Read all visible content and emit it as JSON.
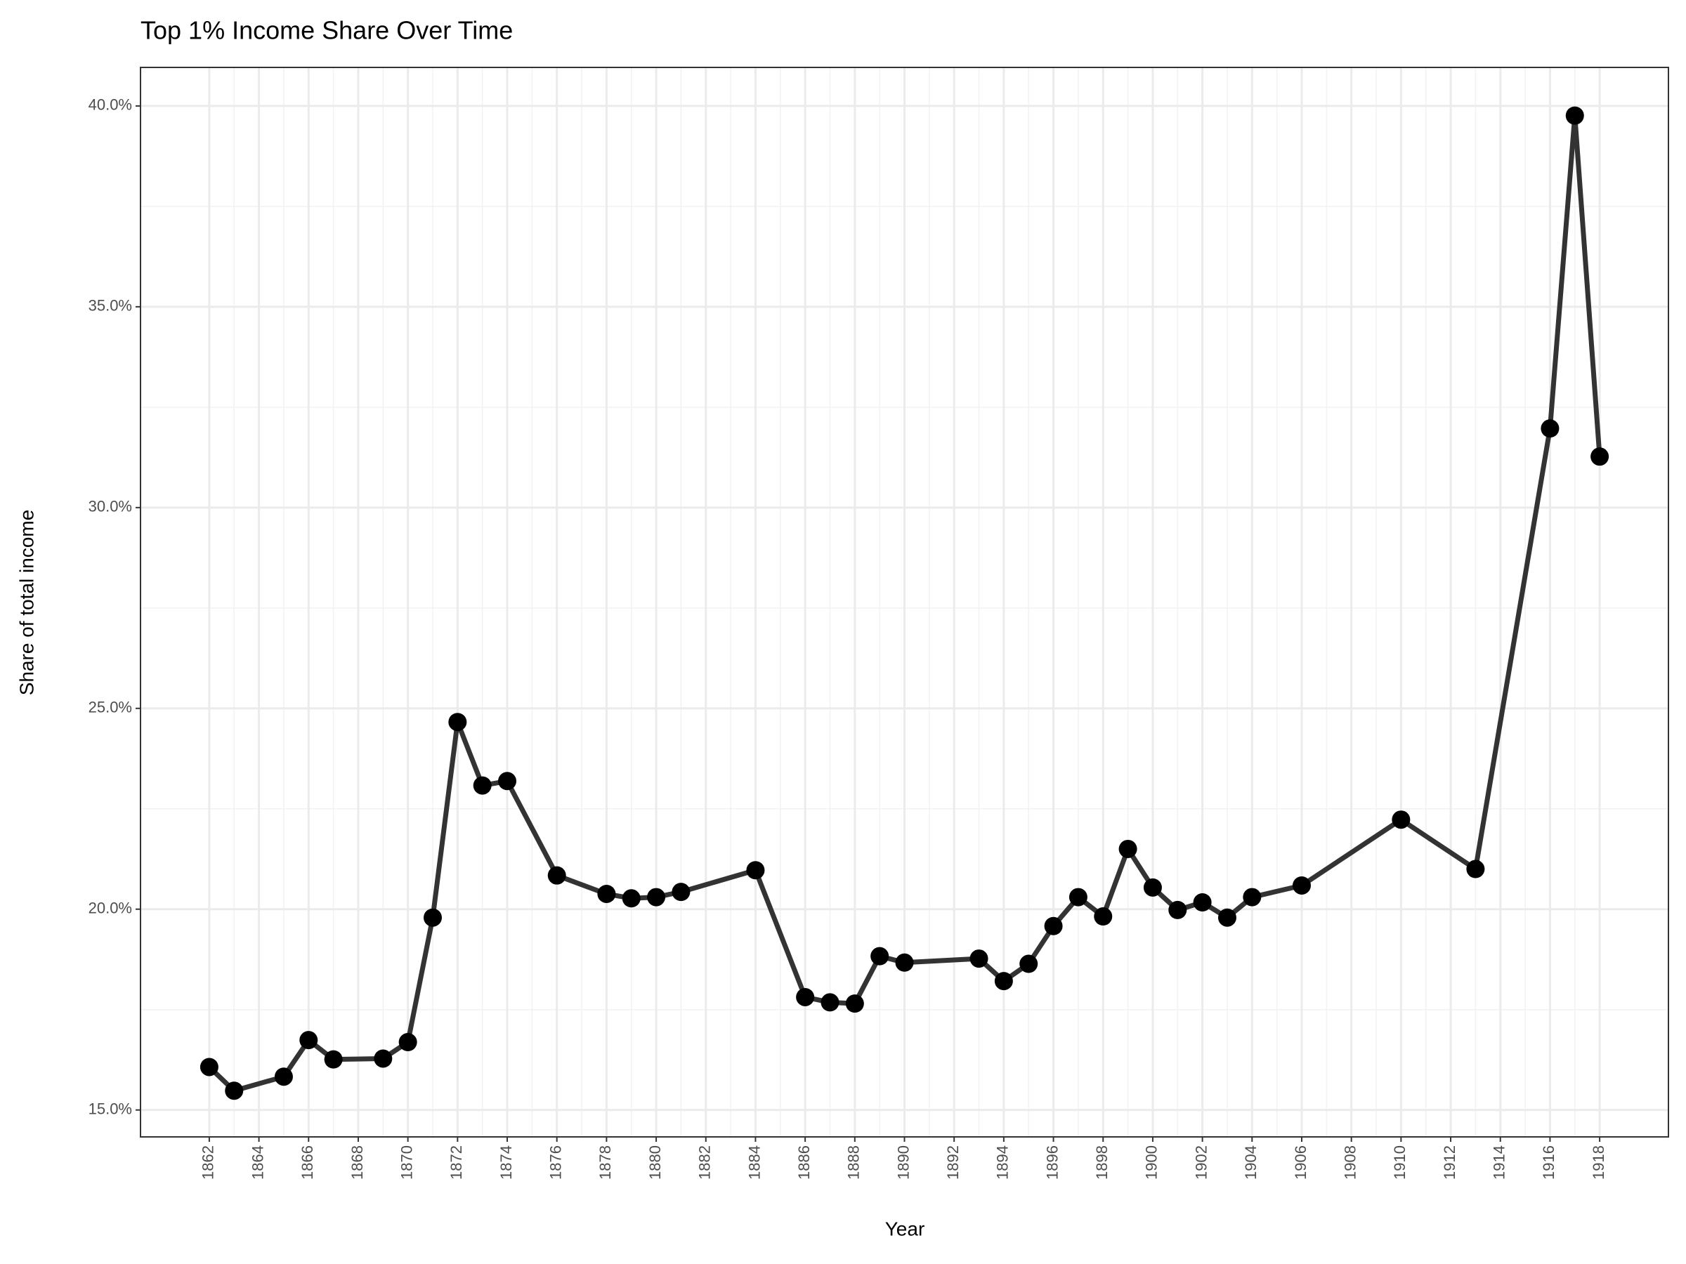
{
  "chart_data": {
    "type": "line",
    "title": "Top 1% Income Share Over Time",
    "x_label": "Year",
    "y_label": "Share of total income",
    "x": [
      1862,
      1863,
      1865,
      1866,
      1867,
      1869,
      1870,
      1871,
      1872,
      1873,
      1874,
      1876,
      1878,
      1879,
      1880,
      1881,
      1884,
      1886,
      1887,
      1888,
      1889,
      1890,
      1893,
      1894,
      1895,
      1896,
      1897,
      1898,
      1899,
      1900,
      1901,
      1902,
      1903,
      1904,
      1906,
      1910,
      1913,
      1916,
      1917,
      1918
    ],
    "values": [
      16.07,
      15.48,
      15.83,
      16.74,
      16.26,
      16.28,
      16.69,
      19.79,
      24.66,
      23.08,
      23.19,
      20.84,
      20.38,
      20.27,
      20.3,
      20.43,
      20.97,
      17.81,
      17.68,
      17.65,
      18.83,
      18.67,
      18.77,
      18.21,
      18.64,
      19.58,
      20.3,
      19.82,
      21.5,
      20.54,
      19.98,
      20.17,
      19.79,
      20.3,
      20.59,
      22.23,
      21.0,
      31.97,
      39.76,
      31.27
    ],
    "color": "#333333",
    "point_color": "#000000",
    "xlim": [
      1859.23,
      1920.77
    ],
    "ylim": [
      14.33,
      40.96
    ],
    "xticks": [
      1862,
      1864,
      1866,
      1868,
      1870,
      1872,
      1874,
      1876,
      1878,
      1880,
      1882,
      1884,
      1886,
      1888,
      1890,
      1892,
      1894,
      1896,
      1898,
      1900,
      1902,
      1904,
      1906,
      1908,
      1910,
      1912,
      1914,
      1916,
      1918
    ],
    "yticks": [
      {
        "value": 15,
        "label": "15.0%"
      },
      {
        "value": 20,
        "label": "20.0%"
      },
      {
        "value": 25,
        "label": "25.0%"
      },
      {
        "value": 30,
        "label": "30.0%"
      },
      {
        "value": 35,
        "label": "35.0%"
      },
      {
        "value": 40,
        "label": "40.0%"
      }
    ],
    "grid": true,
    "minor_grid": true
  }
}
